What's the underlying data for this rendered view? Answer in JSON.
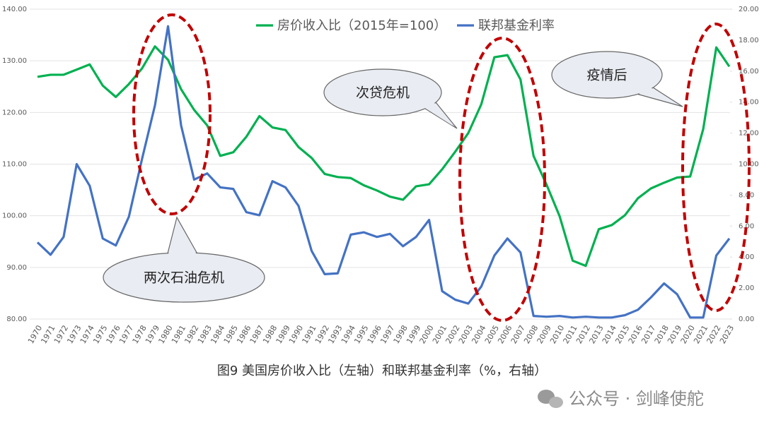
{
  "chart_data": {
    "type": "line",
    "legend_position": "top",
    "grid": true,
    "categories": [
      "1970",
      "1971",
      "1972",
      "1973",
      "1974",
      "1975",
      "1976",
      "1977",
      "1978",
      "1979",
      "1980",
      "1981",
      "1982",
      "1983",
      "1984",
      "1985",
      "1986",
      "1987",
      "1988",
      "1989",
      "1990",
      "1991",
      "1992",
      "1993",
      "1994",
      "1995",
      "1996",
      "1997",
      "1998",
      "1999",
      "2000",
      "2001",
      "2002",
      "2003",
      "2004",
      "2005",
      "2006",
      "2007",
      "2008",
      "2009",
      "2010",
      "2011",
      "2012",
      "2013",
      "2014",
      "2015",
      "2016",
      "2017",
      "2018",
      "2019",
      "2020",
      "2021",
      "2022",
      "2023"
    ],
    "series": [
      {
        "name": "房价收入比（2015年=100）",
        "color": "#00b050",
        "axis": "y",
        "values": [
          126.9,
          127.3,
          127.3,
          128.3,
          129.3,
          125.2,
          123.0,
          125.5,
          128.5,
          132.8,
          130.2,
          124.5,
          120.5,
          117.5,
          111.6,
          112.3,
          115.3,
          119.3,
          117.1,
          116.6,
          113.3,
          111.2,
          108.1,
          107.5,
          107.3,
          105.9,
          104.9,
          103.7,
          103.1,
          105.7,
          106.1,
          109.0,
          112.4,
          116.0,
          121.6,
          130.7,
          131.1,
          126.4,
          111.6,
          106.0,
          99.9,
          91.3,
          90.3,
          97.4,
          98.2,
          100.1,
          103.4,
          105.3,
          106.4,
          107.4,
          107.6,
          116.8,
          132.6,
          128.9
        ]
      },
      {
        "name": "联邦基金利率",
        "color": "#4472c4",
        "axis": "y2",
        "values": [
          4.95,
          4.15,
          5.3,
          10.0,
          8.6,
          5.2,
          4.75,
          6.6,
          10.3,
          13.8,
          18.9,
          12.5,
          9.0,
          9.4,
          8.5,
          8.4,
          6.9,
          6.7,
          8.9,
          8.5,
          7.3,
          4.4,
          2.9,
          2.95,
          5.45,
          5.6,
          5.3,
          5.5,
          4.7,
          5.3,
          6.4,
          1.8,
          1.25,
          1.0,
          2.1,
          4.1,
          5.2,
          4.3,
          0.2,
          0.15,
          0.2,
          0.1,
          0.15,
          0.1,
          0.1,
          0.25,
          0.6,
          1.4,
          2.3,
          1.6,
          0.1,
          0.1,
          4.1,
          5.2
        ]
      }
    ],
    "ylim": [
      80,
      140
    ],
    "yticks": [
      {
        "value": 80,
        "label": "80.00"
      },
      {
        "value": 90,
        "label": "90.00"
      },
      {
        "value": 100,
        "label": "100.00"
      },
      {
        "value": 110,
        "label": "110.00"
      },
      {
        "value": 120,
        "label": "120.00"
      },
      {
        "value": 130,
        "label": "130.00"
      },
      {
        "value": 140,
        "label": "140.00"
      }
    ],
    "y2lim": [
      0,
      20
    ],
    "y2ticks": [
      {
        "value": 0,
        "label": "0.00"
      },
      {
        "value": 2,
        "label": "2.00"
      },
      {
        "value": 4,
        "label": "4.00"
      },
      {
        "value": 6,
        "label": "6.00"
      },
      {
        "value": 8,
        "label": "8.00"
      },
      {
        "value": 10,
        "label": "10.00"
      },
      {
        "value": 12,
        "label": "12.00"
      },
      {
        "value": 14,
        "label": "14.00"
      },
      {
        "value": 16,
        "label": "16.00"
      },
      {
        "value": 18,
        "label": "18.00"
      },
      {
        "value": 20,
        "label": "20.00"
      }
    ],
    "annotations": [
      "两次石油危机",
      "次贷危机",
      "疫情后"
    ],
    "caption": "图9 美国房价收入比（左轴）和联邦基金利率（%，右轴）"
  },
  "watermark": "公众号 · 剑峰使舵"
}
